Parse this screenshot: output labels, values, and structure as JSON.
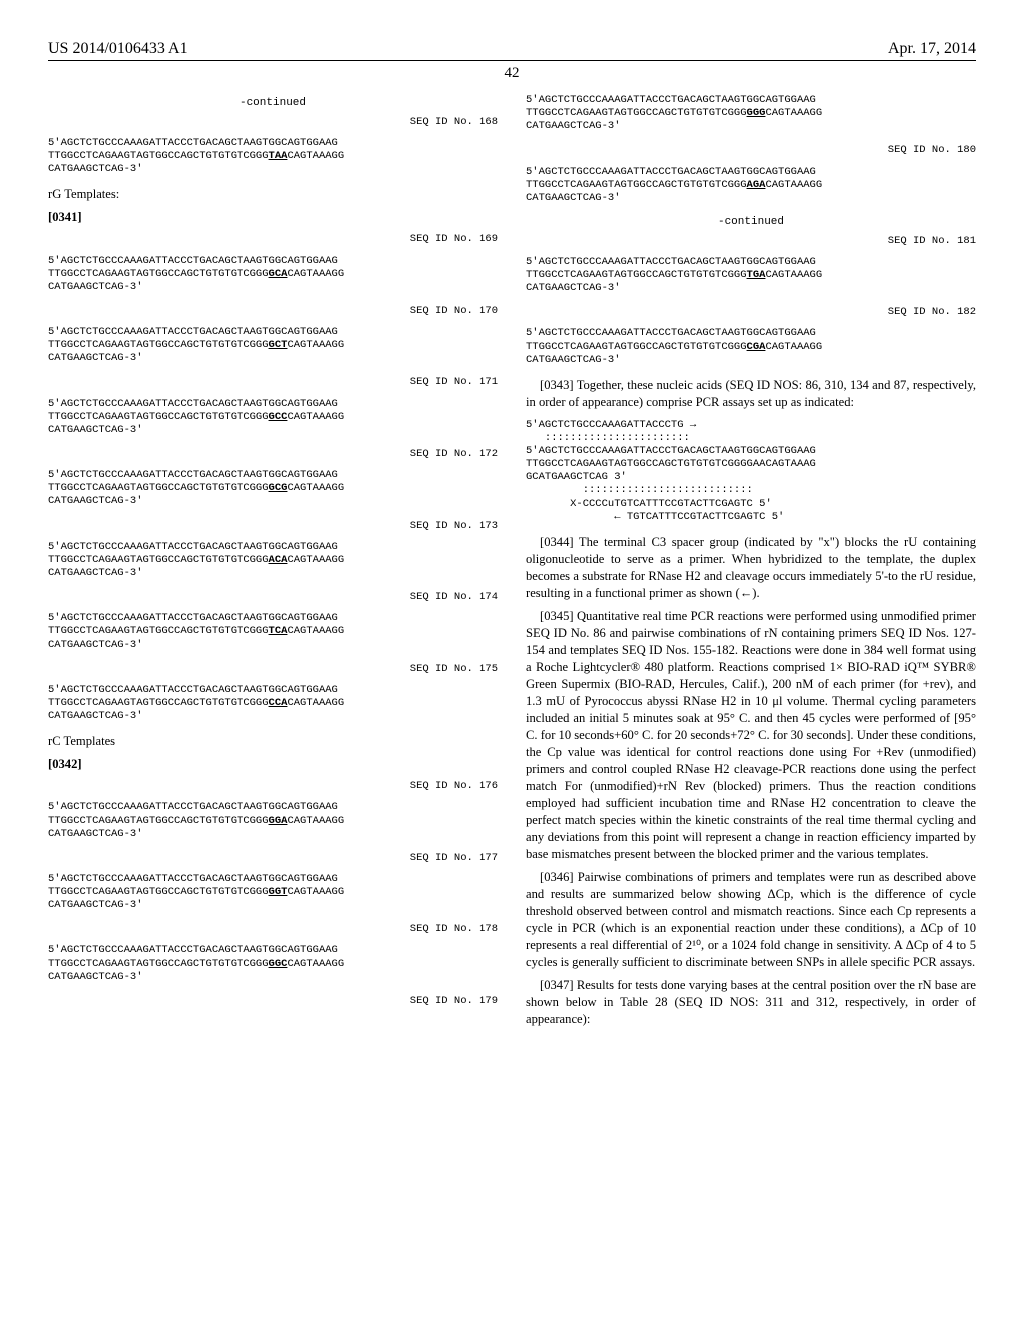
{
  "header": {
    "pubnum": "US 2014/0106433 A1",
    "pubdate": "Apr. 17, 2014",
    "pagenum": "42"
  },
  "left": {
    "continued": "-continued",
    "seq168": {
      "id": "SEQ ID No. 168",
      "l1": "5'AGCTCTGCCCAAAGATTACCCTGACAGCTAAGTGGCAGTGGAAG",
      "l2_a": "TTGGCCTCAGAAGTAGTGGCCAGCTGTGTGTCGGG",
      "l2_b": "TAA",
      "l2_c": "CAGTAAAGG",
      "l3": "CATGAAGCTCAG-3'"
    },
    "rg_label": "rG Templates:",
    "para0341": "[0341]",
    "seq169": {
      "id": "SEQ ID No. 169",
      "b": "GCA"
    },
    "seq170": {
      "id": "SEQ ID No. 170",
      "b": "GCT"
    },
    "seq171": {
      "id": "SEQ ID No. 171",
      "b": "GCC"
    },
    "seq172": {
      "id": "SEQ ID No. 172",
      "b": "GCG"
    },
    "seq173": {
      "id": "SEQ ID No. 173",
      "b": "ACA"
    },
    "seq174": {
      "id": "SEQ ID No. 174",
      "b": "TCA"
    },
    "seq175": {
      "id": "SEQ ID No. 175",
      "b": "CCA"
    },
    "rc_label": "rC Templates",
    "para0342": "[0342]",
    "seq176": {
      "id": "SEQ ID No. 176",
      "b": "GGA"
    },
    "seq177": {
      "id": "SEQ ID No. 177",
      "b": "GGT"
    },
    "seq178": {
      "id": "SEQ ID No. 178",
      "b": "GGC"
    },
    "seq179": {
      "id": "SEQ ID No. 179",
      "b": "GGG"
    },
    "seq180": {
      "id": "SEQ ID No. 180",
      "b": "AGA"
    },
    "common": {
      "l1": "5'AGCTCTGCCCAAAGATTACCCTGACAGCTAAGTGGCAGTGGAAG",
      "l2a": "TTGGCCTCAGAAGTAGTGGCCAGCTGTGTGTCGGG",
      "l2c": "CAGTAAAGG",
      "l3": "CATGAAGCTCAG-3'"
    }
  },
  "right": {
    "continued": "-continued",
    "seq181": {
      "id": "SEQ ID No. 181",
      "b": "TGA"
    },
    "seq182": {
      "id": "SEQ ID No. 182",
      "b": "CGA"
    },
    "seq182_l2a": "TTGGCCTCAGAAGTAGTGGCCAGCTGTGTGTCGGG",
    "seq182_l2c": "CAGTAAAGG",
    "seq181_l2a": "TTGGCCTCAGAAGTAGTGGCCAGCTGTGTGTCGGG",
    "seq181_l2c": "CAGTAAAGG",
    "commonR": {
      "l1": "5'AGCTCTGCCCAAAGATTACCCTGACAGCTAAGTGGCAGTGGAAG",
      "l3": "CATGAAGCTCAG-3'"
    },
    "para0343": "[0343]   Together, these nucleic acids (SEQ ID NOS: 86, 310, 134 and 87, respectively, in order of appearance) comprise PCR assays set up as indicated:",
    "align": {
      "l1": "5'AGCTCTGCCCAAAGATTACCCTG →",
      "l2": "   :::::::::::::::::::::::",
      "l3": "5'AGCTCTGCCCAAAGATTACCCTGACAGCTAAGTGGCAGTGGAAG",
      "l4": "TTGGCCTCAGAAGTAGTGGCCAGCTGTGTGTCGGGGAACAGTAAAG",
      "l4b": "GCATGAAGCTCAG 3'",
      "l5": "         :::::::::::::::::::::::::::",
      "l6": "       X-CCCCuTGTCATTTCCGTACTTCGAGTC 5'",
      "l7": "              ← TGTCATTTCCGTACTTCGAGTC 5'"
    },
    "para0344": "[0344]   The terminal C3 spacer group (indicated by \"x\") blocks the rU containing oligonucleotide to serve as a primer. When hybridized to the template, the duplex becomes a substrate for RNase H2 and cleavage occurs immediately 5'-to the rU residue, resulting in a functional primer as shown (←).",
    "para0345": "[0345]   Quantitative real time PCR reactions were performed using unmodified primer SEQ ID No. 86 and pairwise combinations of rN containing primers SEQ ID Nos. 127-154 and templates SEQ ID Nos. 155-182. Reactions were done in 384 well format using a Roche Lightcycler® 480 platform. Reactions comprised 1× BIO-RAD iQ™ SYBR® Green Supermix (BIO-RAD, Hercules, Calif.), 200 nM of each primer (for +rev), and 1.3 mU of Pyrococcus abyssi RNase H2 in 10 μl volume. Thermal cycling parameters included an initial 5 minutes soak at 95° C. and then 45 cycles were performed of [95° C. for 10 seconds+60° C. for 20 seconds+72° C. for 30 seconds]. Under these conditions, the Cp value was identical for control reactions done using For +Rev (unmodified) primers and control coupled RNase H2 cleavage-PCR reactions done using the perfect match For (unmodified)+rN Rev (blocked) primers. Thus the reaction conditions employed had sufficient incubation time and RNase H2 concentration to cleave the perfect match species within the kinetic constraints of the real time thermal cycling and any deviations from this point will represent a change in reaction efficiency imparted by base mismatches present between the blocked primer and the various templates.",
    "para0346": "[0346]   Pairwise combinations of primers and templates were run as described above and results are summarized below showing ΔCp, which is the difference of cycle threshold observed between control and mismatch reactions. Since each Cp represents a cycle in PCR (which is an exponential reaction under these conditions), a ΔCp of 10 represents a real differential of 2¹⁰, or a 1024 fold change in sensitivity. A ΔCp of 4 to 5 cycles is generally sufficient to discriminate between SNPs in allele specific PCR assays.",
    "para0347": "[0347]   Results for tests done varying bases at the central position over the rN base are shown below in Table 28 (SEQ ID NOS: 311 and 312, respectively, in order of appearance):"
  }
}
